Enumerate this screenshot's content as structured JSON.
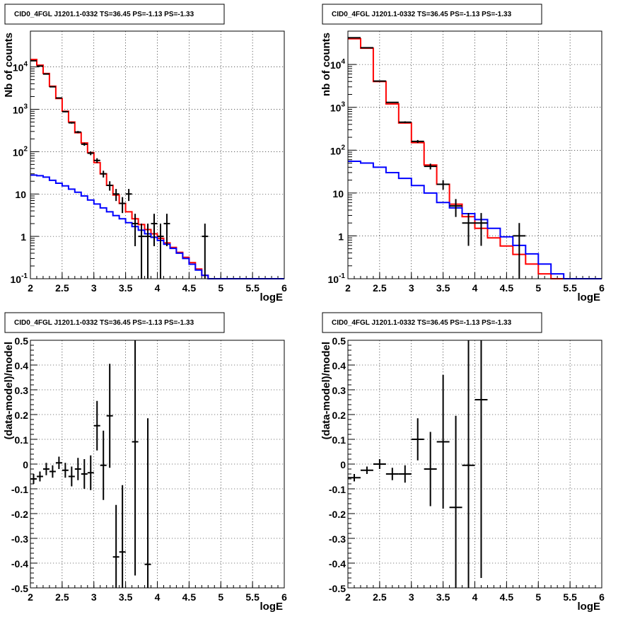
{
  "chart_data": [
    {
      "type": "line",
      "title": "CID0_4FGL J1201.1-0332 TS=36.45 PS=-1.13 PS=-1.33",
      "xlabel": "logE",
      "ylabel": "Nb of counts",
      "yscale": "log",
      "xlim": [
        2,
        6
      ],
      "ylim": [
        0.1,
        70000
      ],
      "xticks": [
        "2",
        "2.5",
        "3",
        "3.5",
        "4",
        "4.5",
        "5",
        "5.5",
        "6"
      ],
      "yticks": [
        "10^-1",
        "1",
        "10",
        "10^2",
        "10^3",
        "10^4"
      ],
      "grid": true,
      "series": [
        {
          "kind": "histogram",
          "color": "#ff0000",
          "bin_edges": [
            2.0,
            2.1,
            2.2,
            2.3,
            2.4,
            2.5,
            2.6,
            2.7,
            2.8,
            2.9,
            3.0,
            3.1,
            3.2,
            3.3,
            3.4,
            3.5,
            3.6,
            3.7,
            3.8,
            3.9,
            4.0,
            4.1,
            4.2,
            4.3,
            4.4,
            4.5,
            4.6,
            4.7,
            4.8,
            4.9,
            5.0,
            5.1,
            5.2,
            5.3,
            5.4,
            5.5,
            5.6,
            5.7,
            5.8,
            5.9,
            6.0
          ],
          "values": [
            15000,
            11000,
            7000,
            3500,
            1800,
            900,
            500,
            280,
            160,
            95,
            55,
            30,
            16,
            9.5,
            6,
            3.8,
            2.6,
            1.9,
            1.45,
            1.15,
            0.9,
            0.7,
            0.55,
            0.42,
            0.32,
            0.24,
            0.17,
            0.12,
            0.1,
            0.1,
            0.1,
            0.1,
            0.1,
            0.1,
            0.1,
            0.1,
            0.1,
            0.1,
            0.1,
            0.1
          ]
        },
        {
          "kind": "histogram",
          "color": "#0000ff",
          "bin_edges": [
            2.0,
            2.1,
            2.2,
            2.3,
            2.4,
            2.5,
            2.6,
            2.7,
            2.8,
            2.9,
            3.0,
            3.1,
            3.2,
            3.3,
            3.4,
            3.5,
            3.6,
            3.7,
            3.8,
            3.9,
            4.0,
            4.1,
            4.2,
            4.3,
            4.4,
            4.5,
            4.6,
            4.7,
            4.8,
            4.9,
            5.0,
            5.1,
            5.2,
            5.3,
            5.4,
            5.5,
            5.6,
            5.7,
            5.8,
            5.9,
            6.0
          ],
          "values": [
            28,
            27,
            25,
            21,
            18,
            15.5,
            13,
            11,
            9,
            7.2,
            5.8,
            4.7,
            3.8,
            3.1,
            2.6,
            2.1,
            1.7,
            1.4,
            1.15,
            0.95,
            0.8,
            0.65,
            0.52,
            0.4,
            0.3,
            0.22,
            0.16,
            0.12,
            0.1,
            0.1,
            0.1,
            0.1,
            0.1,
            0.1,
            0.1,
            0.1,
            0.1,
            0.1,
            0.1,
            0.1
          ]
        },
        {
          "kind": "points",
          "color": "#000000",
          "x": [
            2.05,
            2.15,
            2.25,
            2.35,
            2.45,
            2.55,
            2.65,
            2.75,
            2.85,
            2.95,
            3.05,
            3.15,
            3.25,
            3.35,
            3.45,
            3.55,
            3.65,
            3.75,
            3.85,
            3.95,
            4.05,
            4.15,
            4.75
          ],
          "y": [
            14000,
            10500,
            6800,
            3400,
            1850,
            880,
            480,
            290,
            150,
            92,
            62,
            30,
            16,
            10,
            6,
            10,
            2,
            1,
            1,
            2,
            1,
            2,
            1
          ],
          "xerr": 0.05
        }
      ]
    },
    {
      "type": "line",
      "title": "CID0_4FGL J1201.1-0332 TS=36.45 PS=-1.13 PS=-1.33",
      "xlabel": "logE",
      "ylabel": "nb of counts",
      "yscale": "log",
      "xlim": [
        2,
        6
      ],
      "ylim": [
        0.1,
        60000
      ],
      "xticks": [
        "2",
        "2.5",
        "3",
        "3.5",
        "4",
        "4.5",
        "5",
        "5.5",
        "6"
      ],
      "yticks": [
        "10^-1",
        "1",
        "10",
        "10^2",
        "10^3",
        "10^4"
      ],
      "grid": true,
      "series": [
        {
          "kind": "histogram",
          "color": "#ff0000",
          "bin_edges": [
            2.0,
            2.2,
            2.4,
            2.6,
            2.8,
            3.0,
            3.2,
            3.4,
            3.6,
            3.8,
            4.0,
            4.2,
            4.4,
            4.6,
            4.8,
            5.0,
            5.2,
            5.4,
            5.6,
            5.8,
            6.0
          ],
          "values": [
            40000,
            24000,
            4000,
            1200,
            430,
            150,
            45,
            16,
            5.5,
            2.8,
            1.5,
            0.9,
            0.58,
            0.37,
            0.22,
            0.13,
            0.1,
            0.1,
            0.1,
            0.1
          ]
        },
        {
          "kind": "histogram",
          "color": "#0000ff",
          "bin_edges": [
            2.0,
            2.2,
            2.4,
            2.6,
            2.8,
            3.0,
            3.2,
            3.4,
            3.6,
            3.8,
            4.0,
            4.2,
            4.4,
            4.6,
            4.8,
            5.0,
            5.2,
            5.4,
            5.6,
            5.8,
            6.0
          ],
          "values": [
            55,
            50,
            40,
            30,
            22,
            15,
            10,
            6,
            4.5,
            3.3,
            2.4,
            1.5,
            0.95,
            0.6,
            0.38,
            0.22,
            0.13,
            0.1,
            0.1,
            0.1
          ]
        },
        {
          "kind": "points",
          "color": "#000000",
          "x": [
            2.1,
            2.3,
            2.5,
            2.7,
            2.9,
            3.1,
            3.3,
            3.5,
            3.7,
            3.9,
            4.1,
            4.7
          ],
          "y": [
            42000,
            24500,
            4100,
            1300,
            450,
            160,
            42,
            16,
            5,
            2,
            2,
            1
          ],
          "xerr": 0.1
        }
      ]
    },
    {
      "type": "scatter",
      "title": "CID0_4FGL J1201.1-0332 TS=36.45 PS=-1.13 PS=-1.33",
      "xlabel": "logE",
      "ylabel": "(data-model)/model",
      "xlim": [
        2,
        6
      ],
      "ylim": [
        -0.5,
        0.5
      ],
      "xticks": [
        "2",
        "2.5",
        "3",
        "3.5",
        "4",
        "4.5",
        "5",
        "5.5",
        "6"
      ],
      "yticks": [
        "-0.5",
        "-0.4",
        "-0.3",
        "-0.2",
        "-0.1",
        "0",
        "0.1",
        "0.2",
        "0.3",
        "0.4",
        "0.5"
      ],
      "grid": true,
      "series": [
        {
          "kind": "points",
          "color": "#000000",
          "x": [
            2.05,
            2.15,
            2.25,
            2.35,
            2.45,
            2.55,
            2.65,
            2.75,
            2.85,
            2.95,
            3.05,
            3.15,
            3.25,
            3.35,
            3.45,
            3.65,
            3.85
          ],
          "y": [
            -0.06,
            -0.05,
            -0.02,
            -0.03,
            0.005,
            -0.025,
            -0.05,
            -0.02,
            -0.04,
            -0.035,
            0.155,
            -0.005,
            0.195,
            -0.375,
            -0.355,
            0.09,
            -0.405
          ],
          "yerr": [
            0.02,
            0.02,
            0.025,
            0.025,
            0.025,
            0.03,
            0.04,
            0.045,
            0.06,
            0.07,
            0.1,
            0.14,
            0.21,
            0.21,
            0.27,
            0.54,
            0.59
          ],
          "xerr": 0.05
        }
      ]
    },
    {
      "type": "scatter",
      "title": "CID0_4FGL J1201.1-0332 TS=36.45 PS=-1.13 PS=-1.33",
      "xlabel": "logE",
      "ylabel": "(data-model)/model",
      "xlim": [
        2,
        6
      ],
      "ylim": [
        -0.5,
        0.5
      ],
      "xticks": [
        "2",
        "2.5",
        "3",
        "3.5",
        "4",
        "4.5",
        "5",
        "5.5",
        "6"
      ],
      "yticks": [
        "-0.5",
        "-0.4",
        "-0.3",
        "-0.2",
        "-0.1",
        "0",
        "0.1",
        "0.2",
        "0.3",
        "0.4",
        "0.5"
      ],
      "grid": true,
      "series": [
        {
          "kind": "points",
          "color": "#000000",
          "x": [
            2.1,
            2.3,
            2.5,
            2.7,
            2.9,
            3.1,
            3.3,
            3.5,
            3.7,
            3.9,
            4.1
          ],
          "y": [
            -0.055,
            -0.025,
            0.0,
            -0.04,
            -0.04,
            0.1,
            -0.02,
            0.09,
            -0.175,
            -0.005,
            0.26
          ],
          "yerr": [
            0.015,
            0.015,
            0.02,
            0.025,
            0.035,
            0.085,
            0.15,
            0.27,
            0.37,
            0.6,
            0.72
          ],
          "xerr": 0.1
        }
      ]
    }
  ]
}
